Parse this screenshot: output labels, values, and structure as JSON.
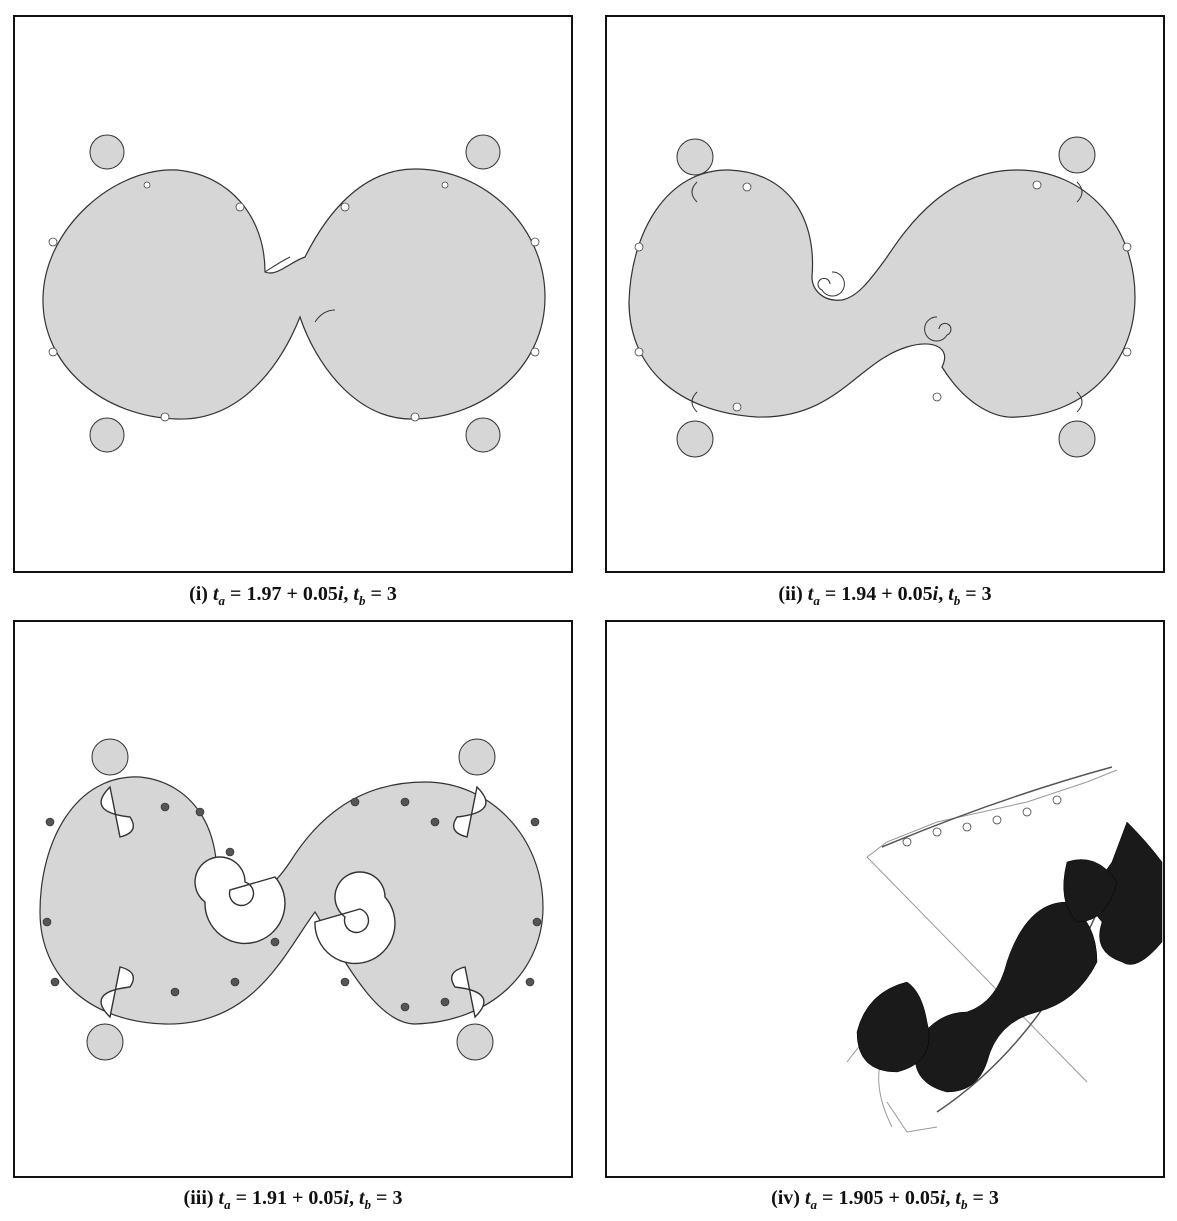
{
  "colors": {
    "fill": "#d6d6d6",
    "edge": "#333333",
    "frame": "#111111",
    "background": "#ffffff"
  },
  "panels": [
    {
      "label": "(i)",
      "ta_real": "1.97",
      "ta_imag": "0.05",
      "tb": "3"
    },
    {
      "label": "(ii)",
      "ta_real": "1.94",
      "ta_imag": "0.05",
      "tb": "3"
    },
    {
      "label": "(iii)",
      "ta_real": "1.91",
      "ta_imag": "0.05",
      "tb": "3"
    },
    {
      "label": "(iv)",
      "ta_real": "1.905",
      "ta_imag": "0.05",
      "tb": "3"
    }
  ],
  "symbols": {
    "t": "t",
    "a": "a",
    "b": "b",
    "eq": "=",
    "plus": "+",
    "imag_unit": "i",
    "comma": ","
  }
}
